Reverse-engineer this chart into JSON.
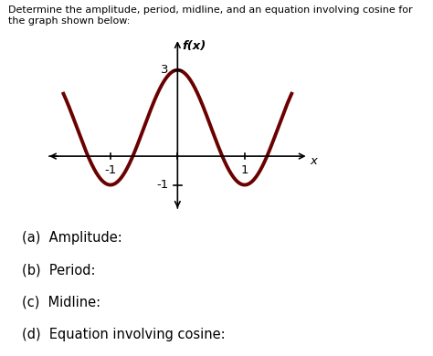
{
  "title_line1": "Determine the amplitude, period, midline, and an equation involving cosine for",
  "title_line2": "the graph shown below:",
  "fx_label": "f(x)",
  "x_label": "x",
  "curve_color": "#6B0000",
  "curve_linewidth": 2.8,
  "amplitude": 2,
  "midline": 1,
  "period": 2,
  "x_ticks": [
    -1,
    0,
    1
  ],
  "y_ticks": [
    -1,
    3
  ],
  "x_range": [
    -2.0,
    2.0
  ],
  "y_range": [
    -2.0,
    4.2
  ],
  "x_plot_min": -1.7,
  "x_plot_max": 1.7,
  "questions": [
    "(a)  Amplitude:",
    "(b)  Period:",
    "(c)  Midline:",
    "(d)  Equation involving cosine:"
  ],
  "background_color": "#ffffff",
  "tick_label_fontsize": 9.5,
  "question_fontsize": 10.5,
  "title_fontsize": 8.0
}
